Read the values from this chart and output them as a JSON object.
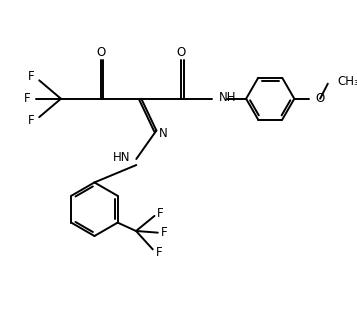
{
  "bg_color": "#ffffff",
  "line_color": "#000000",
  "line_width": 1.4,
  "font_size": 8.5,
  "figsize": [
    3.57,
    3.18
  ],
  "dpi": 100,
  "xlim": [
    0,
    10
  ],
  "ylim": [
    0,
    9
  ]
}
